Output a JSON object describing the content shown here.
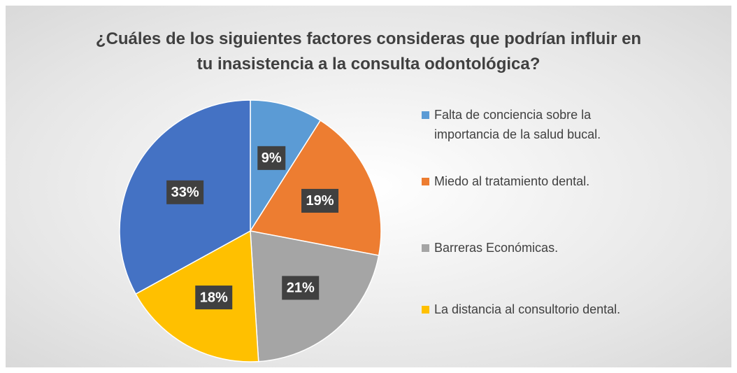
{
  "chart_data": {
    "type": "pie",
    "title": "¿Cuáles de los siguientes factores consideras que podrían influir en tu inasistencia a la consulta odontológica?",
    "categories": [
      "Falta de conciencia sobre la importancia de la salud bucal.",
      "Miedo al tratamiento dental.",
      "Barreras Económicas.",
      "La distancia al consultorio dental.",
      null
    ],
    "values": [
      9,
      19,
      21,
      18,
      33
    ],
    "value_labels": [
      "9%",
      "19%",
      "21%",
      "18%",
      "33%"
    ],
    "colors": [
      "#5b9bd5",
      "#ed7d31",
      "#a5a5a5",
      "#ffc000",
      "#4472c4"
    ]
  }
}
